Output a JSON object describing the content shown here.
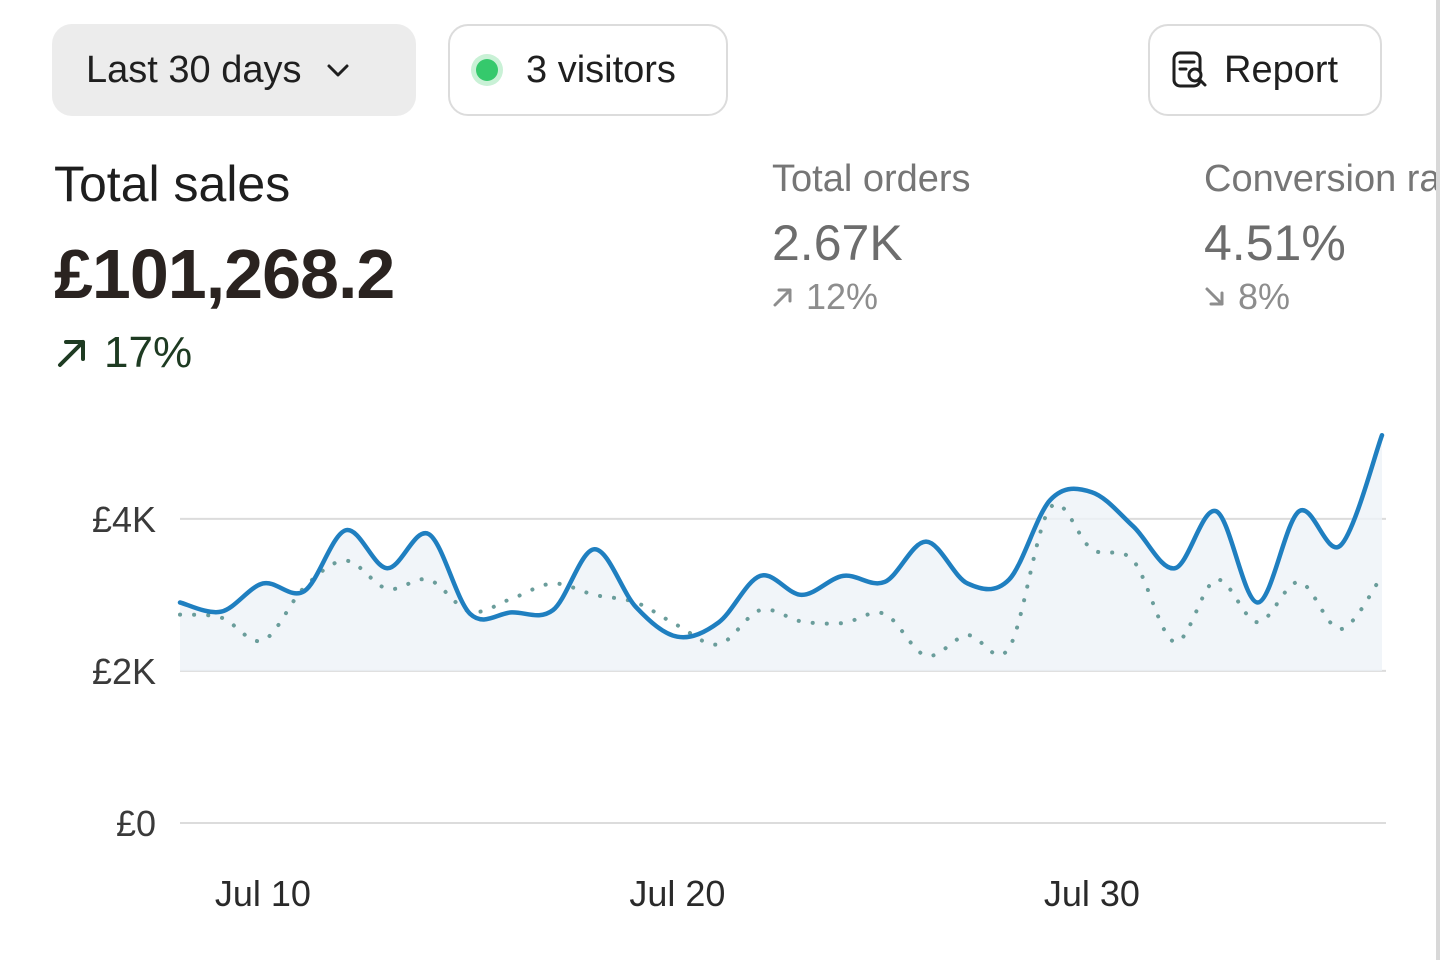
{
  "toolbar": {
    "date_range": "Last 30 days",
    "visitors": "3 visitors",
    "report": "Report",
    "live_color": "#35c96c"
  },
  "metrics": {
    "total_sales": {
      "label": "Total sales",
      "value": "£101,268.2",
      "delta": "17%",
      "trend": "up"
    },
    "total_orders": {
      "label": "Total orders",
      "value": "2.67K",
      "delta": "12%",
      "trend": "up"
    },
    "conversion": {
      "label": "Conversion rate",
      "value": "4.51%",
      "delta": "8%",
      "trend": "down"
    }
  },
  "chart_data": {
    "type": "line",
    "title": "",
    "xlabel": "",
    "ylabel": "",
    "x": [
      "Jul 8",
      "Jul 9",
      "Jul 10",
      "Jul 11",
      "Jul 12",
      "Jul 13",
      "Jul 14",
      "Jul 15",
      "Jul 16",
      "Jul 17",
      "Jul 18",
      "Jul 19",
      "Jul 20",
      "Jul 21",
      "Jul 22",
      "Jul 23",
      "Jul 24",
      "Jul 25",
      "Jul 26",
      "Jul 27",
      "Jul 28",
      "Jul 29",
      "Jul 30",
      "Jul 31",
      "Aug 1",
      "Aug 2",
      "Aug 3",
      "Aug 4",
      "Aug 5",
      "Aug 6"
    ],
    "x_ticks": [
      "Jul 10",
      "Jul 20",
      "Jul 30"
    ],
    "y_ticks": [
      "£0",
      "£2K",
      "£4K"
    ],
    "y_tick_values": [
      0,
      2000,
      4000
    ],
    "ylim": [
      0,
      5300
    ],
    "series": [
      {
        "style": "solid",
        "color": "#1f7fc0",
        "values": [
          2900,
          2780,
          3150,
          3050,
          3850,
          3350,
          3800,
          2750,
          2770,
          2800,
          3600,
          2840,
          2450,
          2640,
          3250,
          3000,
          3250,
          3170,
          3700,
          3150,
          3200,
          4250,
          4350,
          3900,
          3350,
          4100,
          2900,
          4100,
          3650,
          5100
        ]
      },
      {
        "style": "dotted",
        "color": "#6a9d9b",
        "values": [
          2740,
          2700,
          2400,
          3100,
          3450,
          3080,
          3200,
          2780,
          2950,
          3150,
          3000,
          2900,
          2600,
          2350,
          2800,
          2650,
          2630,
          2750,
          2200,
          2470,
          2300,
          4150,
          3600,
          3450,
          2380,
          3200,
          2640,
          3170,
          2550,
          3250
        ]
      }
    ],
    "grid": true,
    "legend": "none"
  }
}
